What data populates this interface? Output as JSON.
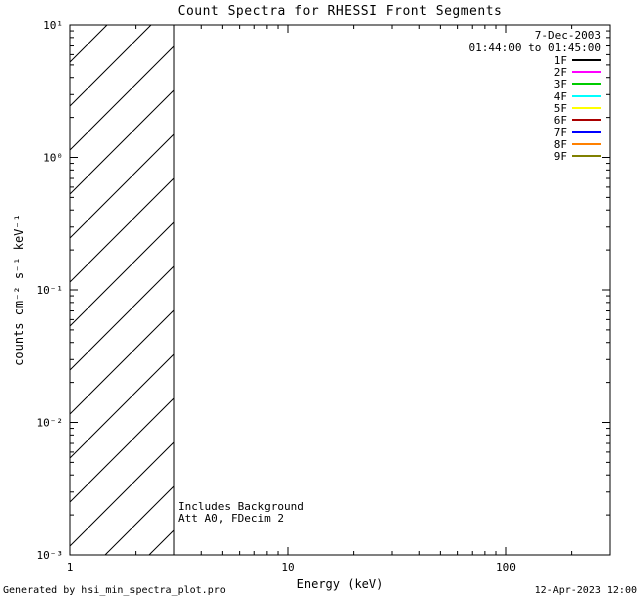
{
  "chart_data": {
    "type": "line",
    "title": "Count Spectra for RHESSI Front Segments",
    "xlabel": "Energy (keV)",
    "ylabel": "counts cm⁻² s⁻¹ keV⁻¹",
    "x_scale": "log",
    "y_scale": "log",
    "xlim": [
      1,
      300
    ],
    "ylim": [
      0.001,
      10
    ],
    "x_major_ticks": [
      1,
      10,
      100
    ],
    "x_tick_labels": [
      "1",
      "10",
      "100"
    ],
    "y_major_ticks": [
      0.001,
      0.01,
      0.1,
      1,
      10
    ],
    "y_tick_labels": [
      "10⁻³",
      "10⁻²",
      "10⁻¹",
      "10⁰",
      "10¹"
    ],
    "grid": false,
    "series": [],
    "hatched_region": {
      "x_start": 1,
      "x_end": 3,
      "style": "diagonal-hatch"
    },
    "legend": {
      "position": "top-right",
      "date": "7-Dec-2003",
      "time_range": "01:44:00 to 01:45:00",
      "entries": [
        {
          "label": "1F",
          "color": "#000000"
        },
        {
          "label": "2F",
          "color": "#ff00ff"
        },
        {
          "label": "3F",
          "color": "#00cc00"
        },
        {
          "label": "4F",
          "color": "#00ffff"
        },
        {
          "label": "5F",
          "color": "#ffff00"
        },
        {
          "label": "6F",
          "color": "#aa0000"
        },
        {
          "label": "7F",
          "color": "#0000ff"
        },
        {
          "label": "8F",
          "color": "#ff8000"
        },
        {
          "label": "9F",
          "color": "#808000"
        }
      ]
    },
    "annotations": [
      "Includes Background",
      "Att A0, FDecim 2"
    ]
  },
  "footer": {
    "left": "Generated by hsi_min_spectra_plot.pro",
    "right": "12-Apr-2023 12:00"
  }
}
